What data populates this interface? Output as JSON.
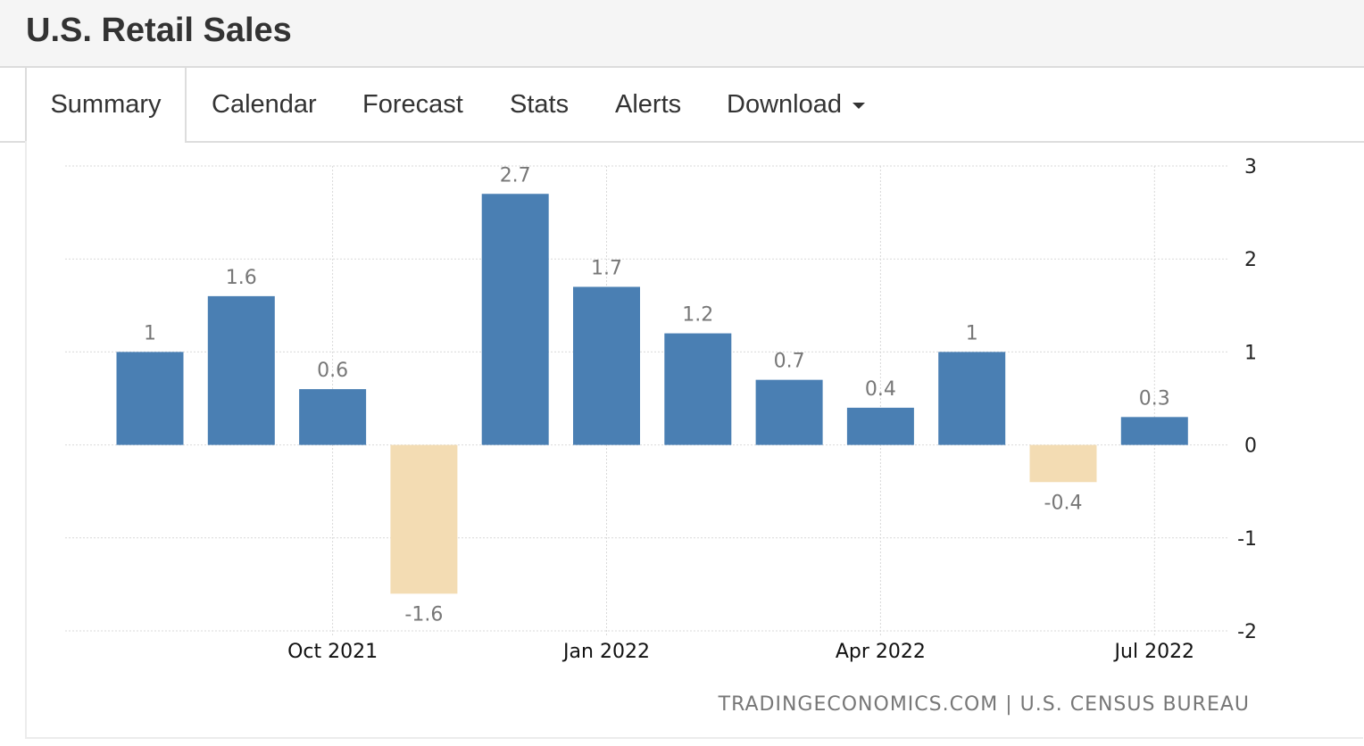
{
  "header": {
    "title": "U.S. Retail Sales"
  },
  "tabs": [
    {
      "label": "Summary",
      "active": true
    },
    {
      "label": "Calendar"
    },
    {
      "label": "Forecast"
    },
    {
      "label": "Stats"
    },
    {
      "label": "Alerts"
    },
    {
      "label": "Download",
      "has_dropdown": true
    }
  ],
  "source": "TRADINGECONOMICS.COM | U.S. CENSUS BUREAU",
  "colors": {
    "positive": "#4a7fb3",
    "negative": "#f3dcb3",
    "grid": "#d9d9d9",
    "label": "#777777"
  },
  "chart_data": {
    "type": "bar",
    "categories": [
      "Aug 2021",
      "Sep 2021",
      "Oct 2021",
      "Nov 2021",
      "Dec 2021",
      "Jan 2022",
      "Feb 2022",
      "Mar 2022",
      "Apr 2022",
      "May 2022",
      "Jun 2022",
      "Jul 2022"
    ],
    "values": [
      1,
      1.6,
      0.6,
      -1.6,
      2.7,
      1.7,
      1.2,
      0.7,
      0.4,
      1,
      -0.4,
      0.3
    ],
    "value_labels": [
      "1",
      "1.6",
      "0.6",
      "-1.6",
      "2.7",
      "1.7",
      "1.2",
      "0.7",
      "0.4",
      "1",
      "-0.4",
      "0.3"
    ],
    "x_tick_labels": [
      "Oct 2021",
      "Jan 2022",
      "Apr 2022",
      "Jul 2022"
    ],
    "y_ticks": [
      "3",
      "2",
      "1",
      "0",
      "-1",
      "-2"
    ],
    "ylim": [
      -2,
      3
    ],
    "y_axis_side": "right",
    "grid": true
  }
}
